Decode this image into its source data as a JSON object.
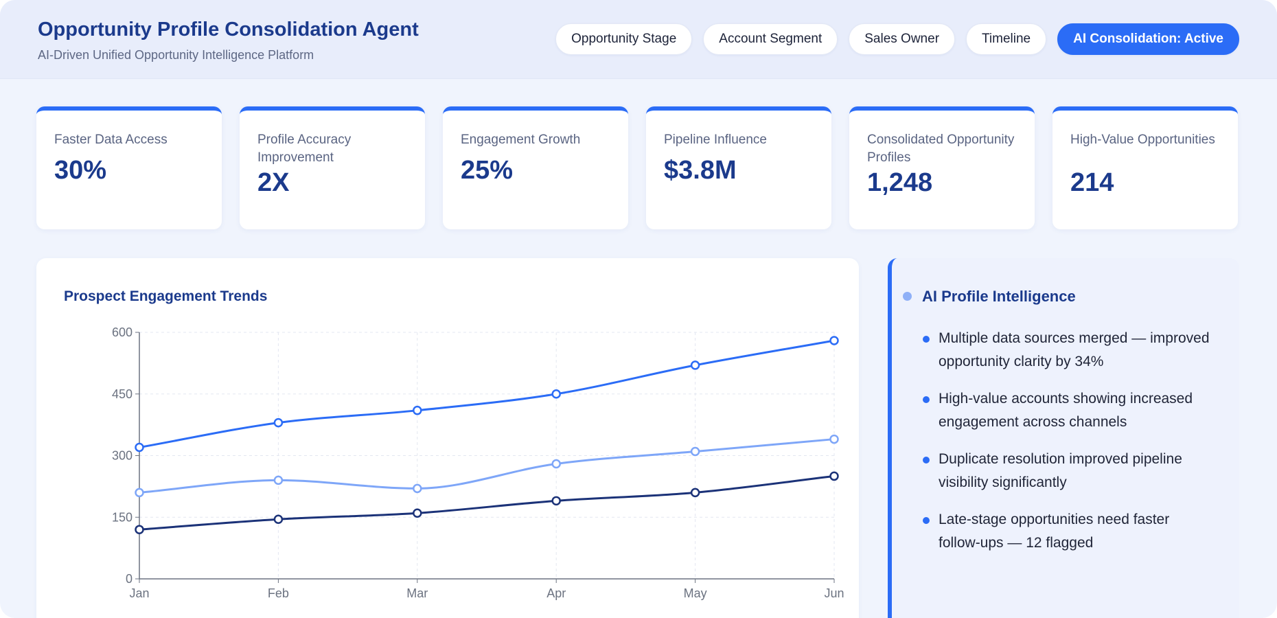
{
  "header": {
    "title": "Opportunity Profile Consolidation Agent",
    "subtitle": "AI-Driven Unified Opportunity Intelligence Platform",
    "filters": [
      "Opportunity Stage",
      "Account Segment",
      "Sales Owner",
      "Timeline"
    ],
    "status_button": "AI Consolidation: Active"
  },
  "kpis": [
    {
      "label": "Faster Data Access",
      "value": "30%"
    },
    {
      "label": "Profile Accuracy Improvement",
      "value": "2X"
    },
    {
      "label": "Engagement Growth",
      "value": "25%"
    },
    {
      "label": "Pipeline Influence",
      "value": "$3.8M"
    },
    {
      "label": "Consolidated Opportunity Profiles",
      "value": "1,248"
    },
    {
      "label": "High-Value Opportunities",
      "value": "214"
    }
  ],
  "chart_data": {
    "type": "line",
    "title": "Prospect Engagement Trends",
    "categories": [
      "Jan",
      "Feb",
      "Mar",
      "Apr",
      "May",
      "Jun"
    ],
    "ylim": [
      0,
      600
    ],
    "yticks": [
      0,
      150,
      300,
      450,
      600
    ],
    "grid": true,
    "legend": "none",
    "series": [
      {
        "values": [
          320,
          380,
          410,
          450,
          520,
          580
        ],
        "color": "#2b6cf6"
      },
      {
        "values": [
          210,
          240,
          220,
          280,
          310,
          340
        ],
        "color": "#7ea6f8"
      },
      {
        "values": [
          120,
          145,
          160,
          190,
          210,
          250
        ],
        "color": "#1b3278"
      }
    ]
  },
  "insights": {
    "title": "AI Profile Intelligence",
    "items": [
      "Multiple data sources merged — improved opportunity clarity by 34%",
      "High-value accounts showing increased engagement across channels",
      "Duplicate resolution improved pipeline visibility significantly",
      "Late-stage opportunities need faster follow-ups — 12 flagged"
    ]
  },
  "colors": {
    "accent": "#2b6cf6",
    "heading": "#1b3a8c",
    "background": "#f0f4fd"
  }
}
